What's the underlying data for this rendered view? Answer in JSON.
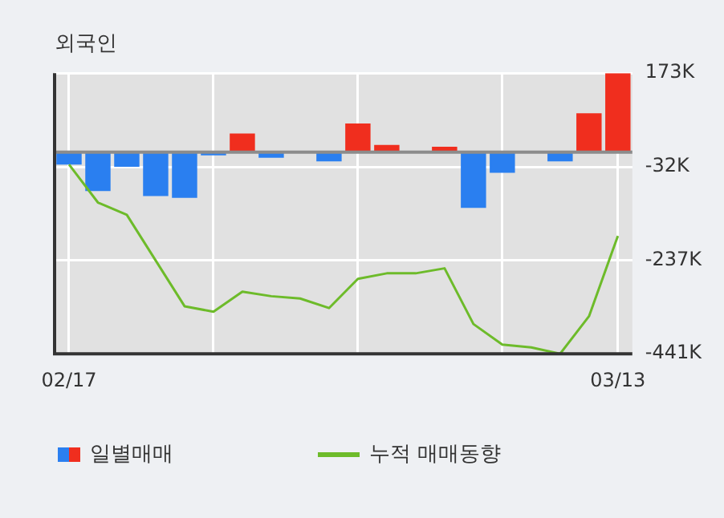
{
  "chart_data": {
    "type": "bar",
    "title": "외국인",
    "categories": [
      "02/17",
      null,
      null,
      null,
      null,
      null,
      null,
      null,
      null,
      null,
      null,
      null,
      null,
      null,
      null,
      null,
      null,
      null,
      null,
      "03/13"
    ],
    "series": [
      {
        "name": "일별매매",
        "colors": [
          "#2a7ff0",
          "#2a7ff0",
          "#2a7ff0",
          "#2a7ff0",
          "#2a7ff0",
          "#2a7ff0",
          "#f02e1e",
          "#2a7ff0",
          "#2a7ff0",
          "#2a7ff0",
          "#f02e1e",
          "#f02e1e",
          "#f02e1e",
          "#f02e1e",
          "#2a7ff0",
          "#2a7ff0",
          "#2a7ff0",
          "#2a7ff0",
          "#f02e1e",
          "#f02e1e"
        ],
        "values": [
          -27,
          -85,
          -32,
          -96,
          -100,
          -7,
          41,
          -12,
          0,
          -20,
          63,
          16,
          0,
          12,
          -122,
          -45,
          0,
          -20,
          85,
          173
        ]
      },
      {
        "name": "누적 매매동향",
        "type": "line",
        "color": "#6dbb2a",
        "values": [
          -27,
          -110,
          -137,
          -237,
          -337,
          -349,
          -305,
          -315,
          -320,
          -341,
          -277,
          -265,
          -265,
          -254,
          -376,
          -421,
          -427,
          -441,
          -359,
          -183
        ]
      }
    ],
    "ylim": [
      -441,
      173
    ],
    "yticks": [
      {
        "value": 173,
        "label": "173K"
      },
      {
        "value": -32,
        "label": "-32K"
      },
      {
        "value": -237,
        "label": "-237K"
      },
      {
        "value": -441,
        "label": "-441K"
      }
    ],
    "ref_lines": [
      {
        "axis": "y",
        "value": 0,
        "color": "#8c8c8c"
      }
    ],
    "grid": true,
    "legend": "bottom",
    "marker": "none"
  }
}
